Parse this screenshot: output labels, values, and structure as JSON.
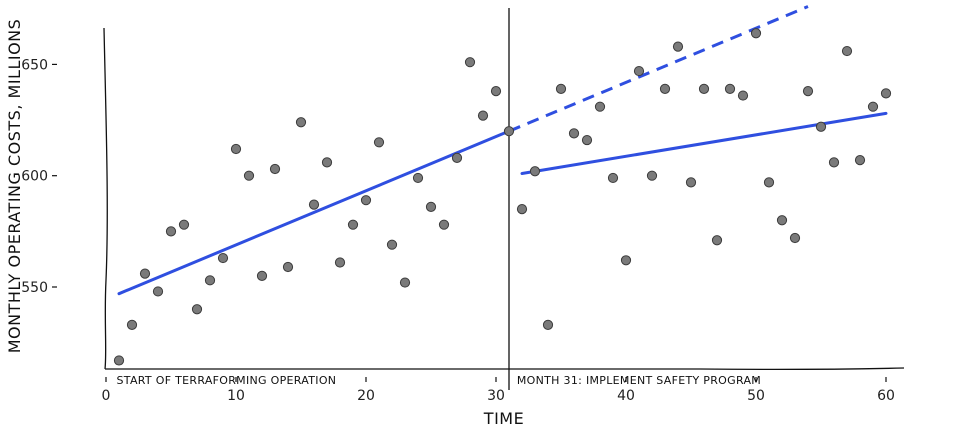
{
  "chart_data": {
    "type": "scatter",
    "title": "",
    "xlabel": "TIME",
    "ylabel": "MONTHLY OPERATING COSTS, MILLIONS",
    "xlim": [
      0,
      61
    ],
    "ylim": [
      514,
      668
    ],
    "x_ticks": [
      0,
      10,
      20,
      30,
      40,
      50,
      60
    ],
    "y_ticks": [
      550,
      600,
      650
    ],
    "grid": false,
    "legend": "none",
    "colors": {
      "points": "#7a7a7a",
      "trend": "#2f4fe0"
    },
    "points": [
      {
        "x": 1,
        "y": 517
      },
      {
        "x": 2,
        "y": 533
      },
      {
        "x": 3,
        "y": 556
      },
      {
        "x": 4,
        "y": 548
      },
      {
        "x": 5,
        "y": 575
      },
      {
        "x": 6,
        "y": 578
      },
      {
        "x": 7,
        "y": 540
      },
      {
        "x": 8,
        "y": 553
      },
      {
        "x": 9,
        "y": 563
      },
      {
        "x": 10,
        "y": 612
      },
      {
        "x": 11,
        "y": 600
      },
      {
        "x": 12,
        "y": 555
      },
      {
        "x": 13,
        "y": 603
      },
      {
        "x": 14,
        "y": 559
      },
      {
        "x": 15,
        "y": 624
      },
      {
        "x": 16,
        "y": 587
      },
      {
        "x": 17,
        "y": 606
      },
      {
        "x": 18,
        "y": 561
      },
      {
        "x": 19,
        "y": 578
      },
      {
        "x": 20,
        "y": 589
      },
      {
        "x": 21,
        "y": 615
      },
      {
        "x": 22,
        "y": 569
      },
      {
        "x": 23,
        "y": 552
      },
      {
        "x": 24,
        "y": 599
      },
      {
        "x": 25,
        "y": 586
      },
      {
        "x": 26,
        "y": 578
      },
      {
        "x": 27,
        "y": 608
      },
      {
        "x": 28,
        "y": 651
      },
      {
        "x": 29,
        "y": 627
      },
      {
        "x": 30,
        "y": 638
      },
      {
        "x": 31,
        "y": 620
      },
      {
        "x": 32,
        "y": 585
      },
      {
        "x": 33,
        "y": 602
      },
      {
        "x": 34,
        "y": 533
      },
      {
        "x": 35,
        "y": 639
      },
      {
        "x": 36,
        "y": 619
      },
      {
        "x": 37,
        "y": 616
      },
      {
        "x": 38,
        "y": 631
      },
      {
        "x": 39,
        "y": 599
      },
      {
        "x": 40,
        "y": 562
      },
      {
        "x": 41,
        "y": 647
      },
      {
        "x": 42,
        "y": 600
      },
      {
        "x": 43,
        "y": 639
      },
      {
        "x": 44,
        "y": 658
      },
      {
        "x": 45,
        "y": 597
      },
      {
        "x": 46,
        "y": 639
      },
      {
        "x": 47,
        "y": 571
      },
      {
        "x": 48,
        "y": 639
      },
      {
        "x": 49,
        "y": 636
      },
      {
        "x": 50,
        "y": 664
      },
      {
        "x": 51,
        "y": 597
      },
      {
        "x": 52,
        "y": 580
      },
      {
        "x": 53,
        "y": 572
      },
      {
        "x": 54,
        "y": 638
      },
      {
        "x": 55,
        "y": 622
      },
      {
        "x": 56,
        "y": 606
      },
      {
        "x": 57,
        "y": 656
      },
      {
        "x": 58,
        "y": 607
      },
      {
        "x": 59,
        "y": 631
      },
      {
        "x": 60,
        "y": 637
      }
    ],
    "trend_lines": [
      {
        "style": "solid",
        "x": [
          1,
          31
        ],
        "y": [
          547,
          620
        ]
      },
      {
        "style": "dashed",
        "x": [
          31,
          54
        ],
        "y": [
          620,
          676
        ]
      },
      {
        "style": "solid",
        "x": [
          32,
          60
        ],
        "y": [
          601,
          628
        ]
      }
    ],
    "vertical_line_x": 31,
    "annotations": [
      {
        "text": "START OF TERRAFORMING OPERATION",
        "x": 0.5
      },
      {
        "text": "MONTH 31: IMPLEMENT SAFETY PROGRAM",
        "x": 31.3
      }
    ]
  }
}
